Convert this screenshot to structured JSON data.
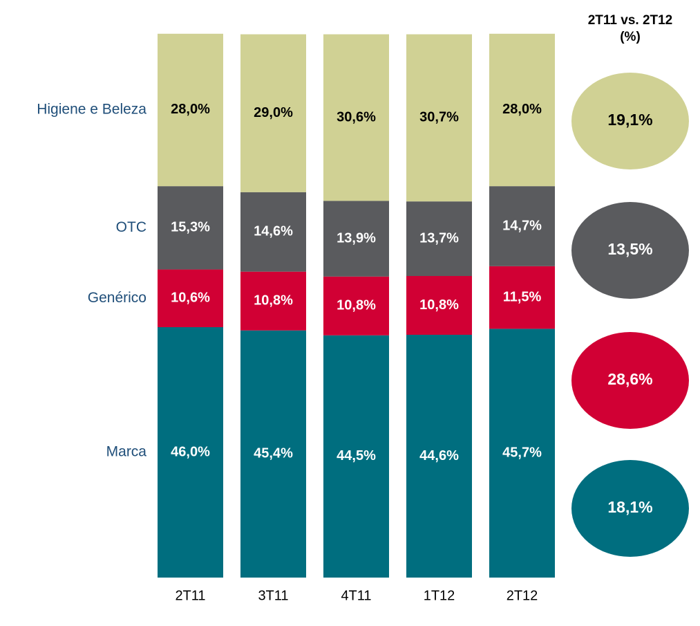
{
  "chart_data": {
    "type": "stacked_bar",
    "title": "2T11 vs. 2T12 (%)",
    "categories": [
      "2T11",
      "3T11",
      "4T11",
      "1T12",
      "2T12"
    ],
    "ylim": [
      0,
      100
    ],
    "series": [
      {
        "name": "Marca",
        "color": "#006e7f",
        "values": [
          46.0,
          45.4,
          44.5,
          44.6,
          45.7
        ],
        "value_labels": [
          "46,0%",
          "45,4%",
          "44,5%",
          "44,6%",
          "45,7%"
        ],
        "growth": 18.1,
        "growth_label": "18,1%"
      },
      {
        "name": "Genérico",
        "color": "#d10034",
        "values": [
          10.6,
          10.8,
          10.8,
          10.8,
          11.5
        ],
        "value_labels": [
          "10,6%",
          "10,8%",
          "10,8%",
          "10,8%",
          "11,5%"
        ],
        "growth": 28.6,
        "growth_label": "28,6%"
      },
      {
        "name": "OTC",
        "color": "#5a5b5e",
        "values": [
          15.3,
          14.6,
          13.9,
          13.7,
          14.7
        ],
        "value_labels": [
          "15,3%",
          "14,6%",
          "13,9%",
          "13,7%",
          "14,7%"
        ],
        "growth": 13.5,
        "growth_label": "13,5%"
      },
      {
        "name": "Higiene e Beleza",
        "color": "#d0d194",
        "values": [
          28.0,
          29.0,
          30.6,
          30.7,
          28.0
        ],
        "value_labels": [
          "28,0%",
          "29,0%",
          "30,6%",
          "30,7%",
          "28,0%"
        ],
        "growth": 19.1,
        "growth_label": "19,1%"
      }
    ]
  }
}
